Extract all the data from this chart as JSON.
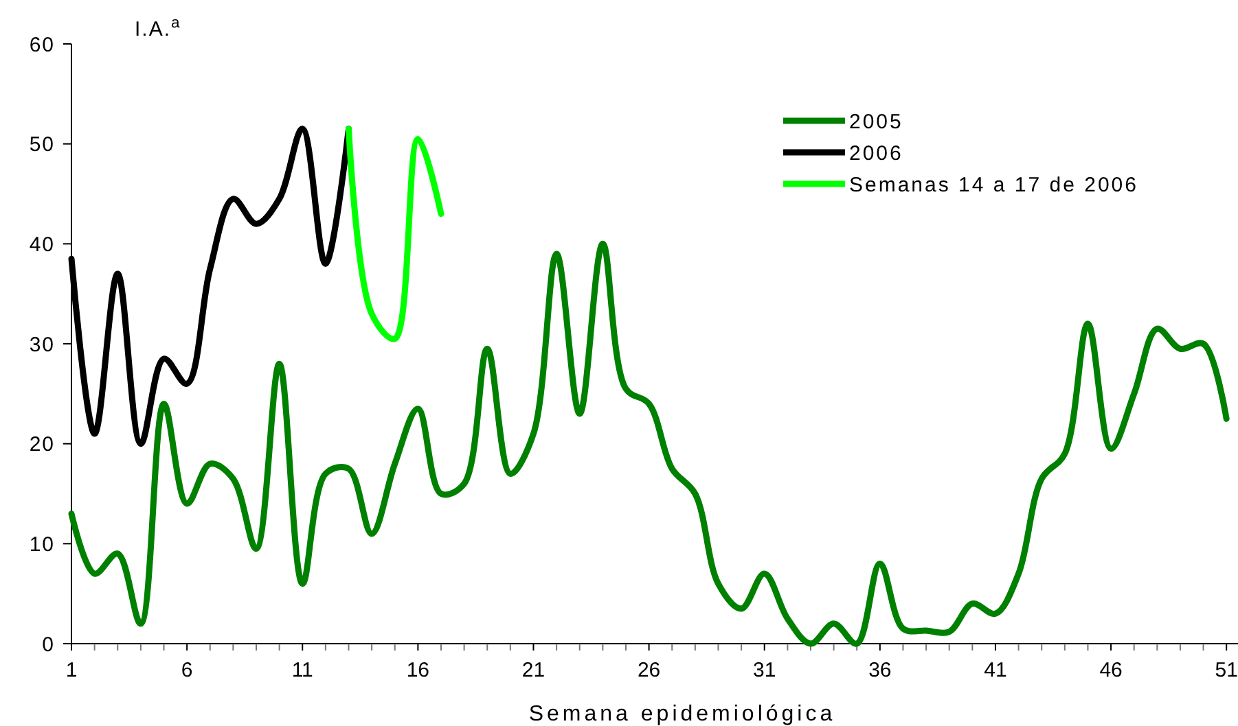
{
  "chart_data": {
    "type": "line",
    "ylabel": "I.A.$^{a}$",
    "xlabel": "Semana epidemiológica",
    "xlim": [
      1,
      51.5
    ],
    "ylim": [
      0,
      60
    ],
    "xticks": [
      1,
      {
        "value": 2,
        "label": null
      },
      {
        "value": 3,
        "label": null
      },
      {
        "value": 4,
        "label": null
      },
      {
        "value": 5,
        "label": null
      },
      6,
      {
        "value": 7,
        "label": null
      },
      {
        "value": 8,
        "label": null
      },
      {
        "value": 9,
        "label": null
      },
      {
        "value": 10,
        "label": null
      },
      11,
      {
        "value": 12,
        "label": null
      },
      {
        "value": 13,
        "label": null
      },
      {
        "value": 14,
        "label": null
      },
      {
        "value": 15,
        "label": null
      },
      16,
      {
        "value": 17,
        "label": null
      },
      {
        "value": 18,
        "label": null
      },
      {
        "value": 19,
        "label": null
      },
      {
        "value": 20,
        "label": null
      },
      21,
      {
        "value": 22,
        "label": null
      },
      {
        "value": 23,
        "label": null
      },
      {
        "value": 24,
        "label": null
      },
      {
        "value": 25,
        "label": null
      },
      26,
      {
        "value": 27,
        "label": null
      },
      {
        "value": 28,
        "label": null
      },
      {
        "value": 29,
        "label": null
      },
      {
        "value": 30,
        "label": null
      },
      31,
      {
        "value": 32,
        "label": null
      },
      {
        "value": 33,
        "label": null
      },
      {
        "value": 34,
        "label": null
      },
      {
        "value": 35,
        "label": null
      },
      36,
      {
        "value": 37,
        "label": null
      },
      {
        "value": 38,
        "label": null
      },
      {
        "value": 39,
        "label": null
      },
      {
        "value": 40,
        "label": null
      },
      41,
      {
        "value": 42,
        "label": null
      },
      {
        "value": 43,
        "label": null
      },
      {
        "value": 44,
        "label": null
      },
      {
        "value": 45,
        "label": null
      },
      46,
      {
        "value": 47,
        "label": null
      },
      {
        "value": 48,
        "label": null
      },
      {
        "value": 49,
        "label": null
      },
      {
        "value": 50,
        "label": null
      },
      51
    ],
    "yticks": [
      0,
      10,
      20,
      30,
      40,
      50,
      60
    ],
    "grid": false,
    "legend": "top right",
    "marker": "none",
    "line_style": "solid",
    "series": [
      {
        "name": "2005",
        "color": "#008000",
        "x": [
          1,
          2,
          3,
          4,
          5,
          6,
          7,
          8,
          9,
          10,
          11,
          12,
          13,
          14,
          15,
          16,
          17,
          18,
          19,
          20,
          21,
          22,
          23,
          24,
          25,
          26,
          27,
          28,
          29,
          30,
          31,
          32,
          33,
          34,
          35,
          36,
          37,
          38,
          39,
          40,
          41,
          42,
          43,
          44,
          45,
          46,
          47,
          48,
          49,
          50,
          51
        ],
        "values": [
          13,
          7,
          9,
          2,
          24,
          14,
          18,
          16.5,
          9.5,
          28,
          6,
          17,
          17.5,
          11,
          18,
          23.5,
          15,
          16,
          29.5,
          17,
          21,
          39,
          23,
          40,
          25.5,
          24,
          17.5,
          15,
          6,
          3.5,
          7,
          2.5,
          0,
          2,
          0,
          8,
          1.5,
          1.3,
          1.2,
          4,
          3,
          7,
          16.5,
          19,
          32,
          19.5,
          25,
          31.5,
          29.5,
          30,
          22.5
        ]
      },
      {
        "name": "2006",
        "color": "#000000",
        "x": [
          1,
          2,
          3,
          4,
          5,
          6,
          7,
          8,
          9,
          10,
          11,
          12,
          13
        ],
        "values": [
          38.5,
          21,
          37,
          20,
          28.5,
          26,
          37.5,
          44.5,
          42,
          44.5,
          51.5,
          38,
          51.5
        ]
      },
      {
        "name": "Semanas 14 a 17 de 2006",
        "color": "#00ff00",
        "x": [
          13,
          14,
          15,
          16,
          17
        ],
        "values": [
          51.5,
          33,
          30.5,
          50.5,
          43
        ]
      }
    ]
  }
}
